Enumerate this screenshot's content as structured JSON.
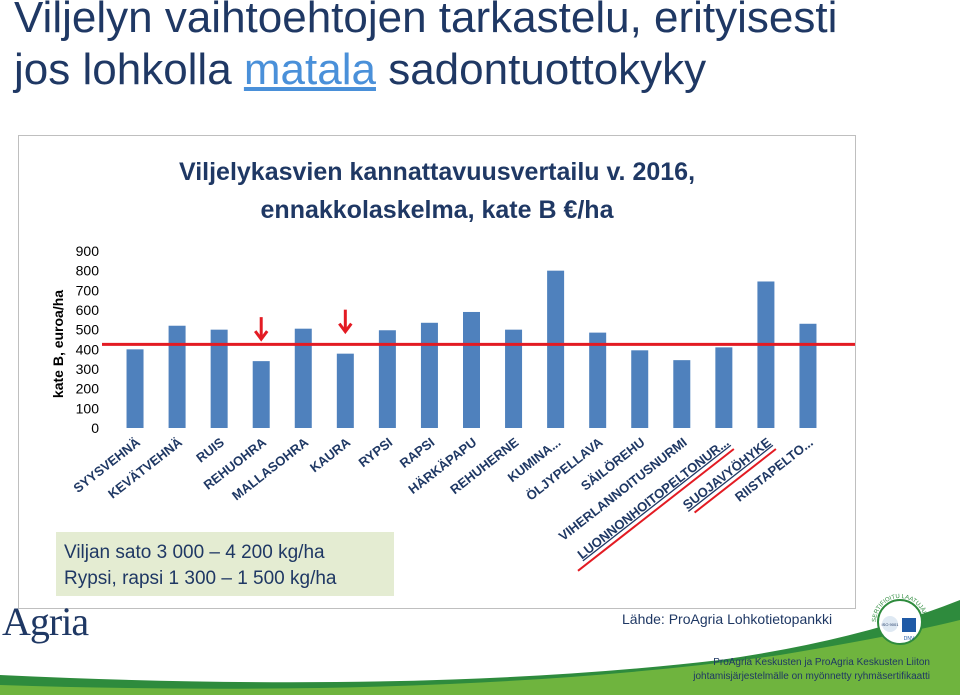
{
  "slide": {
    "title_line1": "Viljelyn vaihtoehtojen tarkastelu, erityisesti",
    "title_line2_pre": "jos lohkolla ",
    "title_line2_highlight": "matala",
    "title_line2_post": " sadontuottokyky"
  },
  "info_box": {
    "line1": "Viljan sato 3 000 – 4 200 kg/ha",
    "line2": "Rypsi, rapsi 1 300 – 1 500 kg/ha"
  },
  "logo_text": "Agria",
  "source": "Lähde: ProAgria Lohkotietopankki",
  "cert": {
    "ring_text": "SERTIFIOITU LAATUJÄRJESTELMÄ",
    "iso": "ISO 9001",
    "dnv": "DNV"
  },
  "footer": {
    "line1": "ProAgria Keskusten ja ProAgria Keskusten Liiton",
    "line2": "johtamisjärjestelmälle on myönnetty ryhmäsertifikaatti"
  },
  "chart_data": {
    "type": "bar",
    "title_line1": "Viljelykasvien kannattavuusvertailu v. 2016,",
    "title_line2": "ennakkolaskelma, kate B €/ha",
    "ylabel": "kate B, euroa/ha",
    "xlabel": "",
    "ylim": [
      0,
      900
    ],
    "yticks": [
      0,
      100,
      200,
      300,
      400,
      500,
      600,
      700,
      800,
      900
    ],
    "grid": false,
    "categories": [
      "SYYSVEHNÄ",
      "KEVÄTVEHNÄ",
      "RUIS",
      "REHUOHRA",
      "MALLASOHRA",
      "KAURA",
      "RYPSI",
      "RAPSI",
      "HÄRKÄPAPU",
      "REHUHERNE",
      "KUMINA...",
      "ÖLJYPELLAVA",
      "SÄILÖREHU",
      "VIHERLANNOITUSNURMI",
      "LUONNONHOITOPELTONUR...",
      "SUOJAVYÖHYKE",
      "RIISTAPELTO..."
    ],
    "values": [
      400,
      520,
      500,
      340,
      505,
      378,
      497,
      535,
      590,
      500,
      800,
      485,
      395,
      345,
      410,
      745,
      530
    ],
    "bar_color": "#4f81bd",
    "reference_line": {
      "value": 425,
      "color": "#e31b23"
    },
    "arrow_markers": [
      "REHUOHRA",
      "KAURA"
    ],
    "underlined_labels": [
      "LUONNONHOITOPELTONUR...",
      "SUOJAVYÖHYKE"
    ]
  }
}
